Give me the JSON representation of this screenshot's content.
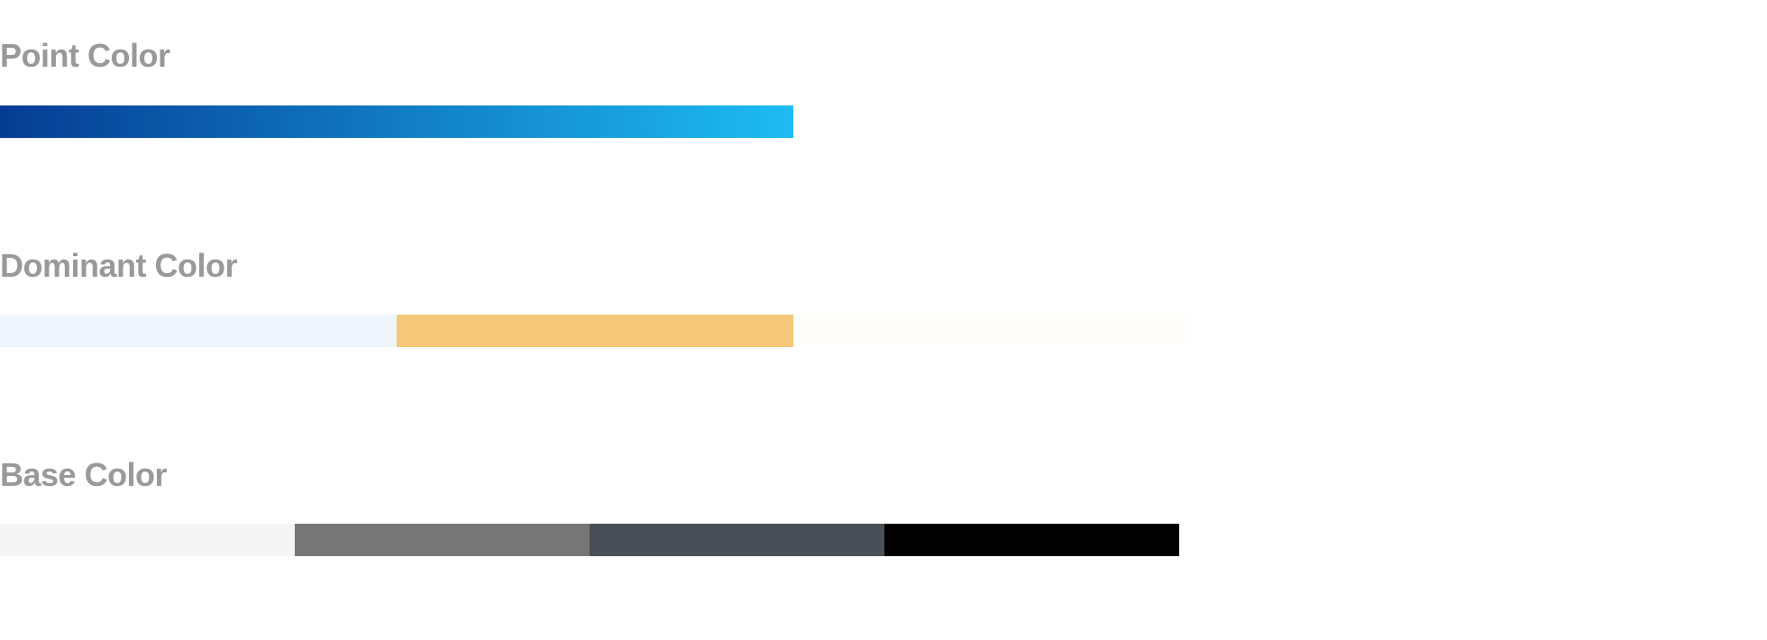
{
  "sections": {
    "point": {
      "title": "Point Color",
      "gradient": {
        "from": "#053C93",
        "to": "#1DBCF2"
      }
    },
    "dominant": {
      "title": "Dominant Color",
      "swatches": [
        "#EEF5FC",
        "#F5C778",
        "#FFFEFA"
      ]
    },
    "base": {
      "title": "Base Color",
      "swatches": [
        "#F5F5F5",
        "#767676",
        "#4A4F57",
        "#000000"
      ]
    }
  }
}
